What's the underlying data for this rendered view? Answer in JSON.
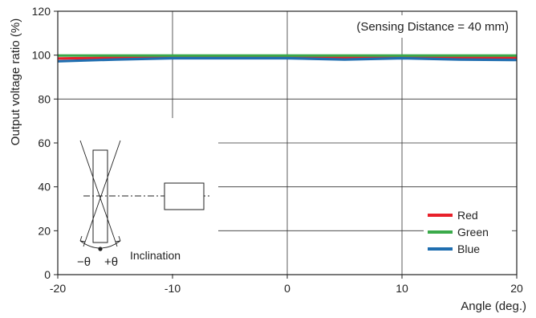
{
  "chart_data": {
    "type": "line",
    "x": [
      -20,
      -15,
      -10,
      -5,
      0,
      5,
      10,
      15,
      20
    ],
    "xlim": [
      -20,
      20
    ],
    "ylim": [
      0,
      120
    ],
    "xticks": [
      "-20",
      "-10",
      "0",
      "10",
      "20"
    ],
    "yticks": [
      "0",
      "20",
      "40",
      "60",
      "80",
      "100",
      "120"
    ],
    "xlabel": "Angle (deg.)",
    "ylabel": "Output voltage ratio (%)",
    "grid": true,
    "legend_position": "bottom-right",
    "annotation": "(Sensing Distance = 40 mm)",
    "inset_label": "Inclination",
    "inset_minus": "−θ",
    "inset_plus": "+θ",
    "series": [
      {
        "name": "Red",
        "color": "#e8202a",
        "values": [
          98.5,
          98.8,
          99.0,
          99.0,
          99.0,
          98.8,
          99.0,
          99.0,
          98.8
        ]
      },
      {
        "name": "Green",
        "color": "#3aaa4a",
        "values": [
          99.8,
          99.8,
          99.8,
          99.8,
          99.8,
          99.8,
          99.8,
          99.8,
          99.8
        ]
      },
      {
        "name": "Blue",
        "color": "#1f6eb0",
        "values": [
          97.2,
          98.0,
          98.6,
          98.6,
          98.6,
          98.0,
          98.6,
          98.0,
          97.8
        ]
      }
    ]
  }
}
